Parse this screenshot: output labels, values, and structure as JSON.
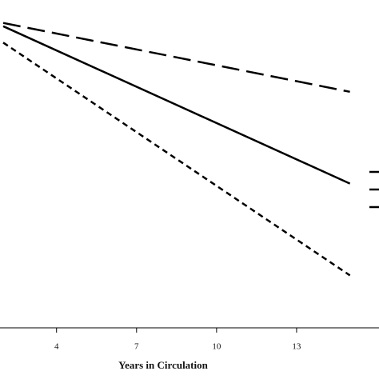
{
  "chart_data": {
    "type": "line",
    "x_label": "Years in Circulation",
    "x": [
      2,
      15
    ],
    "xlim": [
      2,
      16
    ],
    "xticks": [
      4,
      7,
      10,
      13
    ],
    "ylim": [
      0,
      100
    ],
    "series": [
      {
        "color": "#000000",
        "dash": "long",
        "values": [
          93,
          72
        ]
      },
      {
        "color": "#000000",
        "dash": "solid",
        "values": [
          92,
          44
        ]
      },
      {
        "color": "#000000",
        "dash": "short",
        "values": [
          87,
          16
        ]
      }
    ]
  }
}
